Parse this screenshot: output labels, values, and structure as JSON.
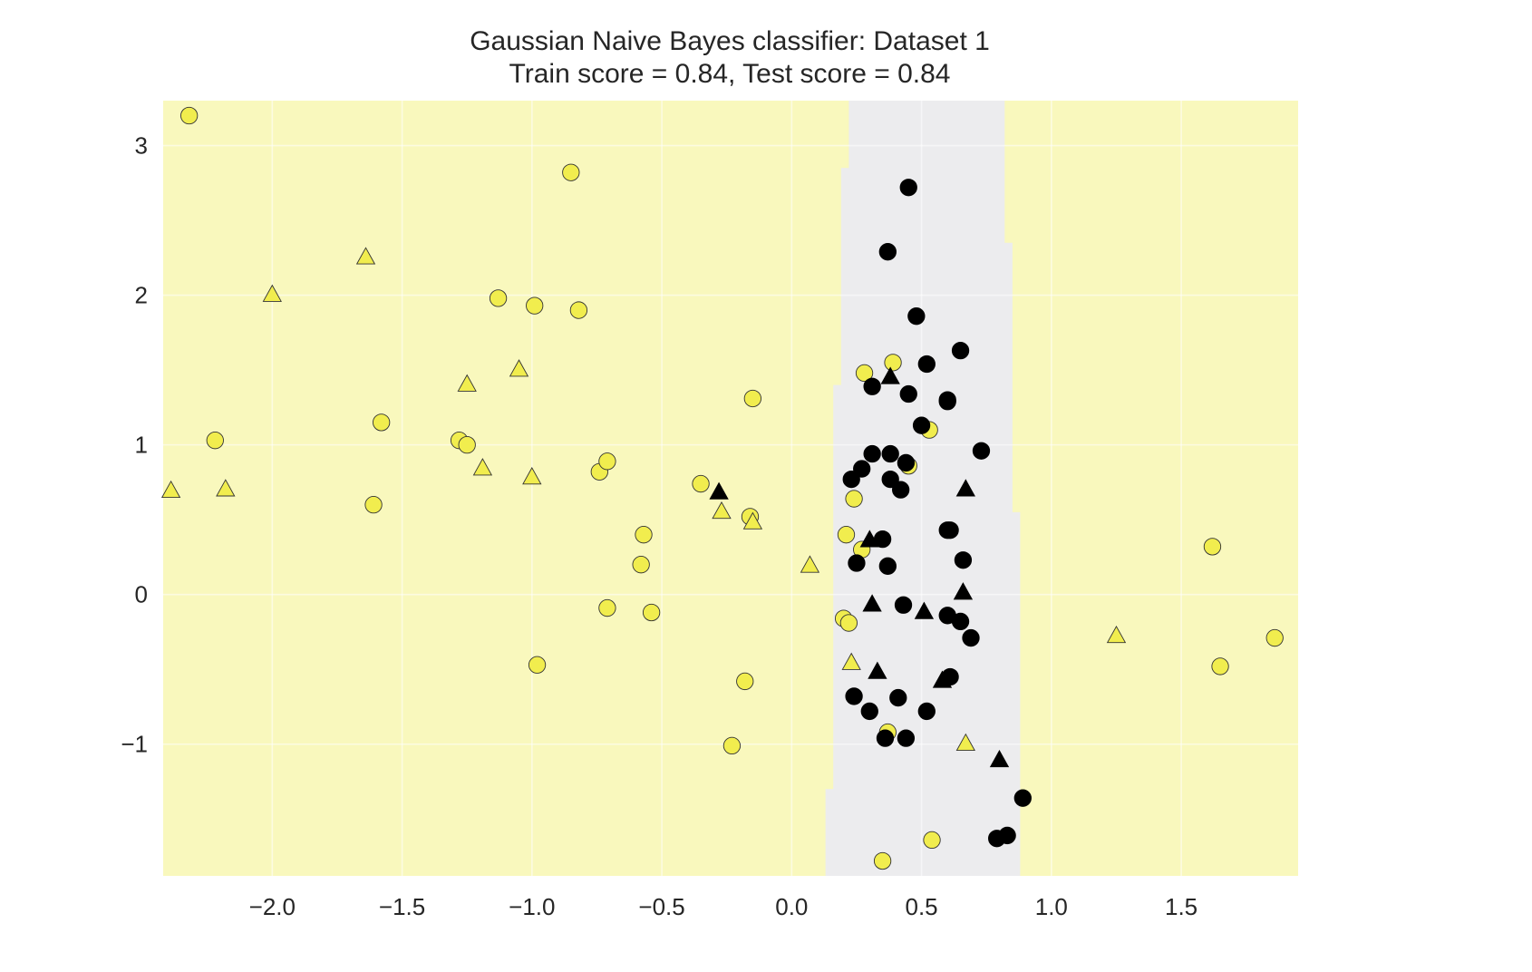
{
  "chart_data": {
    "type": "scatter",
    "title": "Gaussian Naive Bayes classifier: Dataset 1",
    "subtitle": "Train score = 0.84, Test score = 0.84",
    "xlabel": "",
    "ylabel": "",
    "xlim": [
      -2.42,
      1.95
    ],
    "ylim": [
      -1.88,
      3.3
    ],
    "x_ticks": [
      -2.0,
      -1.5,
      -1.0,
      -0.5,
      0.0,
      0.5,
      1.0,
      1.5
    ],
    "x_tick_labels": [
      "−2.0",
      "−1.5",
      "−1.0",
      "−0.5",
      "0.0",
      "0.5",
      "1.0",
      "1.5"
    ],
    "y_ticks": [
      -1,
      0,
      1,
      2,
      3
    ],
    "y_tick_labels": [
      "−1",
      "0",
      "1",
      "2",
      "3"
    ],
    "grid": true,
    "legend": "none",
    "colors": {
      "class_yellow": "#f1ed4e",
      "class_black": "#000000",
      "region_yellow": "#f9f8bd",
      "region_gray": "#ececee",
      "grid": "#ffffff",
      "marker_edge": "#333333"
    },
    "decision_region": {
      "description_class_inside": "black",
      "description_class_outside": "yellow",
      "band_left_x": [
        [
          3.3,
          0.22
        ],
        [
          2.85,
          0.19
        ],
        [
          1.4,
          0.16
        ],
        [
          -1.3,
          0.13
        ],
        [
          -1.88,
          0.13
        ]
      ],
      "band_right_x": [
        [
          3.3,
          0.82
        ],
        [
          2.35,
          0.85
        ],
        [
          0.55,
          0.88
        ],
        [
          -1.88,
          0.88
        ]
      ]
    },
    "series": [
      {
        "marker": "circle",
        "class": "yellow",
        "points": [
          [
            -2.32,
            3.2
          ],
          [
            -2.22,
            1.03
          ],
          [
            -1.61,
            0.6
          ],
          [
            -1.58,
            1.15
          ],
          [
            -1.28,
            1.03
          ],
          [
            -1.25,
            1.0
          ],
          [
            -1.13,
            1.98
          ],
          [
            -0.99,
            1.93
          ],
          [
            -0.98,
            -0.47
          ],
          [
            -0.85,
            2.82
          ],
          [
            -0.82,
            1.9
          ],
          [
            -0.74,
            0.82
          ],
          [
            -0.71,
            0.89
          ],
          [
            -0.71,
            -0.09
          ],
          [
            -0.57,
            0.4
          ],
          [
            -0.58,
            0.2
          ],
          [
            -0.54,
            -0.12
          ],
          [
            -0.35,
            0.74
          ],
          [
            -0.16,
            0.52
          ],
          [
            -0.15,
            1.31
          ],
          [
            -0.18,
            -0.58
          ],
          [
            -0.23,
            -1.01
          ],
          [
            0.28,
            1.48
          ],
          [
            0.39,
            1.55
          ],
          [
            0.45,
            0.86
          ],
          [
            0.53,
            1.1
          ],
          [
            0.24,
            0.64
          ],
          [
            0.21,
            0.4
          ],
          [
            0.27,
            0.3
          ],
          [
            0.2,
            -0.16
          ],
          [
            0.22,
            -0.19
          ],
          [
            0.37,
            -0.92
          ],
          [
            0.35,
            -1.78
          ],
          [
            0.54,
            -1.64
          ],
          [
            1.62,
            0.32
          ],
          [
            1.65,
            -0.48
          ],
          [
            1.86,
            -0.29
          ]
        ]
      },
      {
        "marker": "triangle",
        "class": "yellow",
        "points": [
          [
            -2.39,
            0.69
          ],
          [
            -2.18,
            0.7
          ],
          [
            -2.0,
            2.0
          ],
          [
            -1.64,
            2.25
          ],
          [
            -1.25,
            1.4
          ],
          [
            -1.19,
            0.84
          ],
          [
            -1.05,
            1.5
          ],
          [
            -1.0,
            0.78
          ],
          [
            -0.27,
            0.55
          ],
          [
            -0.15,
            0.48
          ],
          [
            0.07,
            0.19
          ],
          [
            0.23,
            -0.46
          ],
          [
            0.67,
            -1.0
          ],
          [
            1.25,
            -0.28
          ]
        ]
      },
      {
        "marker": "circle",
        "class": "black",
        "points": [
          [
            0.45,
            2.72
          ],
          [
            0.37,
            2.29
          ],
          [
            0.48,
            1.86
          ],
          [
            0.65,
            1.63
          ],
          [
            0.52,
            1.54
          ],
          [
            0.31,
            1.39
          ],
          [
            0.45,
            1.34
          ],
          [
            0.6,
            1.29
          ],
          [
            0.6,
            1.3
          ],
          [
            0.5,
            1.13
          ],
          [
            0.73,
            0.96
          ],
          [
            0.31,
            0.94
          ],
          [
            0.38,
            0.94
          ],
          [
            0.44,
            0.88
          ],
          [
            0.27,
            0.84
          ],
          [
            0.23,
            0.77
          ],
          [
            0.38,
            0.77
          ],
          [
            0.42,
            0.7
          ],
          [
            0.6,
            0.43
          ],
          [
            0.61,
            0.43
          ],
          [
            0.35,
            0.37
          ],
          [
            0.66,
            0.23
          ],
          [
            0.25,
            0.21
          ],
          [
            0.37,
            0.19
          ],
          [
            0.43,
            -0.07
          ],
          [
            0.6,
            -0.14
          ],
          [
            0.65,
            -0.18
          ],
          [
            0.69,
            -0.29
          ],
          [
            0.61,
            -0.55
          ],
          [
            0.24,
            -0.68
          ],
          [
            0.41,
            -0.69
          ],
          [
            0.3,
            -0.78
          ],
          [
            0.52,
            -0.78
          ],
          [
            0.36,
            -0.96
          ],
          [
            0.44,
            -0.96
          ],
          [
            0.89,
            -1.36
          ],
          [
            0.79,
            -1.63
          ],
          [
            0.83,
            -1.61
          ]
        ]
      },
      {
        "marker": "triangle",
        "class": "black",
        "points": [
          [
            -0.28,
            0.68
          ],
          [
            0.38,
            1.45
          ],
          [
            0.3,
            0.36
          ],
          [
            0.31,
            -0.07
          ],
          [
            0.51,
            -0.12
          ],
          [
            0.66,
            0.01
          ],
          [
            0.67,
            0.7
          ],
          [
            0.33,
            -0.52
          ],
          [
            0.58,
            -0.58
          ],
          [
            0.8,
            -1.11
          ]
        ]
      }
    ]
  }
}
